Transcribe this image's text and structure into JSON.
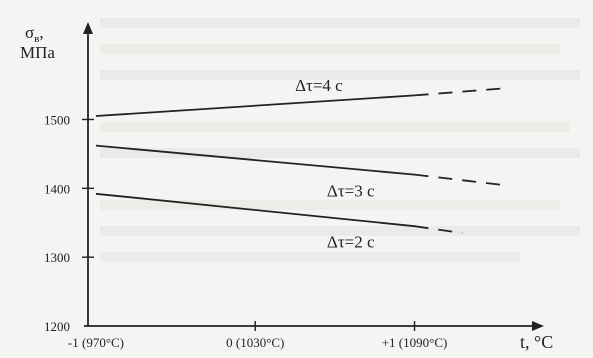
{
  "chart_data": {
    "type": "line",
    "title": "",
    "ylabel_symbol": "σ",
    "ylabel_subscript": "в",
    "ylabel_trailing": ",",
    "ylabel_unit": "МПа",
    "xlabel": "t, °C",
    "x_ticks": [
      {
        "x": -1,
        "label": "-1 (970°C)"
      },
      {
        "x": 0,
        "label": "0 (1030°C)"
      },
      {
        "x": 1,
        "label": "+1 (1090°C)"
      }
    ],
    "y_ticks": [
      {
        "y": 1200,
        "label": "1200"
      },
      {
        "y": 1300,
        "label": "1300"
      },
      {
        "y": 1400,
        "label": "1400"
      },
      {
        "y": 1500,
        "label": "1500"
      }
    ],
    "xlim": [
      -1.05,
      1.75
    ],
    "ylim": [
      1200,
      1630
    ],
    "solid_end_x": 1.0,
    "series": [
      {
        "name": "Δτ=4 с",
        "x": [
          -1,
          1,
          1.55
        ],
        "y": [
          1505,
          1535,
          1545
        ]
      },
      {
        "name": "Δτ=3 с",
        "x": [
          -1,
          1,
          1.55
        ],
        "y": [
          1462,
          1420,
          1405
        ]
      },
      {
        "name": "Δτ=2 с",
        "x": [
          -1,
          1,
          1.3
        ],
        "y": [
          1392,
          1345,
          1335
        ]
      }
    ]
  }
}
